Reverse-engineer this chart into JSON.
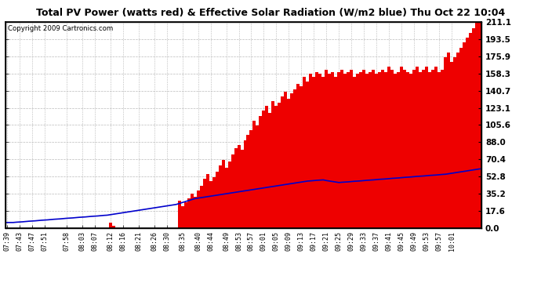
{
  "title": "Total PV Power (watts red) & Effective Solar Radiation (W/m2 blue) Thu Oct 22 10:04",
  "copyright": "Copyright 2009 Cartronics.com",
  "yticks": [
    0.0,
    17.6,
    35.2,
    52.8,
    70.4,
    88.0,
    105.6,
    123.1,
    140.7,
    158.3,
    175.9,
    193.5,
    211.1
  ],
  "ymax": 211.1,
  "ymin": 0.0,
  "bar_color": "#EE0000",
  "line_color": "#0000CC",
  "bg_color": "#FFFFFF",
  "grid_color": "#BBBBBB",
  "x_tick_labels": [
    "07:39",
    "07:43",
    "07:47",
    "07:51",
    "07:58",
    "08:03",
    "08:07",
    "08:12",
    "08:16",
    "08:21",
    "08:26",
    "08:30",
    "08:35",
    "08:40",
    "08:44",
    "08:49",
    "08:53",
    "08:57",
    "09:01",
    "09:05",
    "09:09",
    "09:13",
    "09:17",
    "09:21",
    "09:25",
    "09:29",
    "09:33",
    "09:37",
    "09:41",
    "09:45",
    "09:49",
    "09:53",
    "09:57",
    "10:01"
  ],
  "x_tick_minutes": [
    0,
    4,
    8,
    12,
    19,
    24,
    28,
    33,
    37,
    42,
    47,
    51,
    56,
    61,
    65,
    70,
    74,
    78,
    82,
    86,
    90,
    94,
    98,
    102,
    106,
    110,
    114,
    118,
    122,
    126,
    130,
    134,
    138,
    142
  ],
  "pv_power": [
    0,
    0,
    0,
    0,
    0,
    0,
    0,
    0,
    0,
    0,
    0,
    0,
    0,
    0,
    0,
    0,
    0,
    0,
    0,
    0,
    0,
    0,
    0,
    0,
    0,
    0,
    0,
    0,
    0,
    0,
    0,
    0,
    0,
    5,
    2,
    0,
    0,
    0,
    0,
    0,
    0,
    0,
    0,
    0,
    0,
    0,
    0,
    0,
    0,
    0,
    0,
    0,
    0,
    0,
    0,
    28,
    22,
    26,
    30,
    35,
    32,
    38,
    43,
    50,
    55,
    48,
    52,
    58,
    64,
    70,
    62,
    68,
    75,
    82,
    85,
    80,
    90,
    95,
    100,
    110,
    105,
    115,
    120,
    125,
    118,
    130,
    125,
    128,
    135,
    140,
    132,
    138,
    142,
    148,
    145,
    155,
    150,
    158,
    155,
    160,
    158,
    155,
    162,
    158,
    160,
    155,
    160,
    162,
    158,
    160,
    162,
    155,
    158,
    160,
    162,
    158,
    160,
    162,
    158,
    160,
    162,
    160,
    165,
    162,
    158,
    160,
    165,
    162,
    160,
    158,
    162,
    165,
    160,
    162,
    165,
    160,
    162,
    165,
    160,
    162,
    175,
    180,
    170,
    175,
    180,
    185,
    190,
    195,
    200,
    205,
    210,
    211
  ],
  "solar_rad": [
    5.5,
    5.5,
    5.5,
    5.8,
    6.0,
    6.2,
    6.5,
    6.8,
    7.0,
    7.2,
    7.5,
    7.8,
    8.0,
    8.2,
    8.5,
    8.8,
    9.0,
    9.2,
    9.5,
    9.8,
    10.0,
    10.2,
    10.5,
    10.8,
    11.0,
    11.2,
    11.5,
    11.8,
    12.0,
    12.2,
    12.5,
    12.8,
    13.0,
    13.5,
    14.0,
    14.5,
    15.0,
    15.5,
    16.0,
    16.5,
    17.0,
    17.5,
    18.0,
    18.5,
    19.0,
    19.5,
    20.0,
    20.5,
    21.0,
    21.5,
    22.0,
    22.5,
    23.0,
    23.5,
    24.0,
    25.0,
    26.0,
    27.0,
    28.0,
    29.0,
    30.0,
    30.5,
    31.0,
    31.5,
    32.0,
    32.5,
    33.0,
    33.5,
    34.0,
    34.5,
    35.0,
    35.5,
    36.0,
    36.5,
    37.0,
    37.5,
    38.0,
    38.5,
    39.0,
    39.5,
    40.0,
    40.5,
    41.0,
    41.5,
    42.0,
    42.5,
    43.0,
    43.5,
    44.0,
    44.5,
    45.0,
    45.5,
    46.0,
    46.5,
    47.0,
    47.5,
    48.0,
    48.2,
    48.5,
    48.8,
    49.0,
    49.2,
    48.5,
    48.0,
    47.5,
    47.0,
    46.5,
    46.8,
    47.0,
    47.2,
    47.5,
    47.8,
    48.0,
    48.2,
    48.5,
    48.8,
    49.0,
    49.2,
    49.5,
    49.8,
    50.0,
    50.2,
    50.5,
    50.8,
    51.0,
    51.2,
    51.5,
    51.8,
    52.0,
    52.2,
    52.5,
    52.8,
    53.0,
    53.2,
    53.5,
    53.8,
    54.0,
    54.2,
    54.5,
    54.8,
    55.0,
    55.5,
    56.0,
    56.5,
    57.0,
    57.5,
    58.0,
    58.5,
    59.0,
    59.5,
    60.0,
    60.5
  ]
}
